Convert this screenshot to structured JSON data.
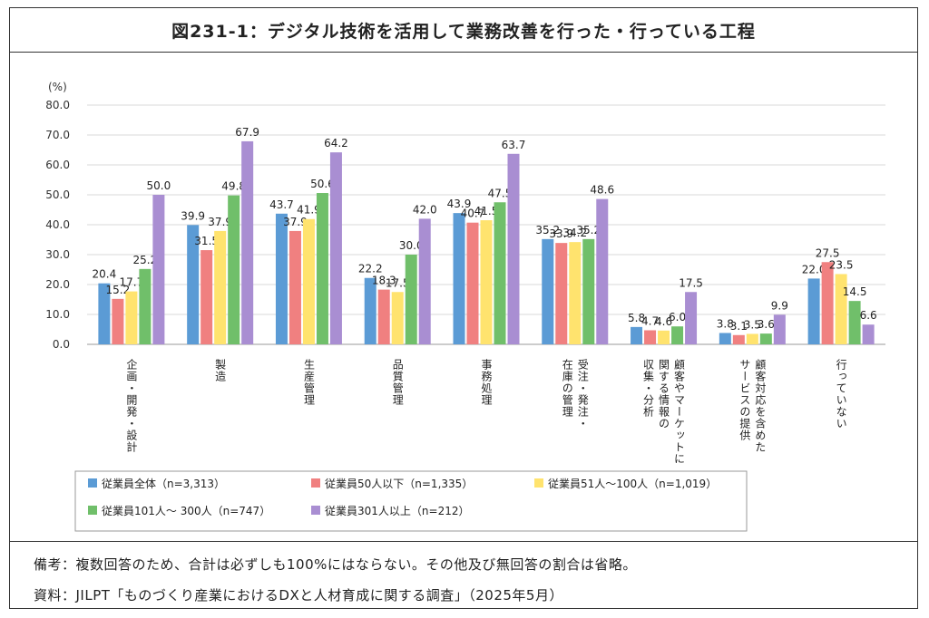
{
  "title": "図231-1：デジタル技術を活用して業務改善を行った・行っている工程",
  "notes": {
    "remarks": "備考：複数回答のため、合計は必ずしも100%にはならない。その他及び無回答の割合は省略。",
    "source": "資料：JILPT「ものづくり産業におけるDXと人材育成に関する調査」（2025年5月）"
  },
  "chart_data": {
    "type": "bar",
    "y_unit_label": "(%)",
    "ylim": [
      0,
      80
    ],
    "y_ticks": [
      "0.0",
      "10.0",
      "20.0",
      "30.0",
      "40.0",
      "50.0",
      "60.0",
      "70.0",
      "80.0"
    ],
    "grid": true,
    "legend_position": "bottom",
    "categories": [
      [
        "企画・開発・設計"
      ],
      [
        "製造"
      ],
      [
        "生産管理"
      ],
      [
        "品質管理"
      ],
      [
        "事務処理"
      ],
      [
        "受注・発注・",
        "在庫の管理"
      ],
      [
        "顧客やマーケットに",
        "関する情報の",
        "収集・分析"
      ],
      [
        "顧客対応を含めた",
        "サービスの提供"
      ],
      [
        "行っていない"
      ]
    ],
    "series": [
      {
        "name": "従業員全体（n=3,313）",
        "color": "#5b9bd5",
        "values": [
          20.4,
          39.9,
          43.7,
          22.2,
          43.9,
          35.2,
          5.8,
          3.8,
          22.0
        ]
      },
      {
        "name": "従業員50人以下（n=1,335）",
        "color": "#f08080",
        "values": [
          15.2,
          31.5,
          37.9,
          18.3,
          40.7,
          33.9,
          4.7,
          3.1,
          27.5
        ]
      },
      {
        "name": "従業員51人～100人（n=1,019）",
        "color": "#ffe36e",
        "values": [
          17.7,
          37.9,
          41.9,
          17.5,
          41.5,
          34.2,
          4.6,
          3.5,
          23.5
        ]
      },
      {
        "name": "従業員101人～ 300人（n=747）",
        "color": "#70bf6a",
        "values": [
          25.2,
          49.8,
          50.6,
          30.0,
          47.5,
          35.2,
          6.0,
          3.6,
          14.5
        ]
      },
      {
        "name": "従業員301人以上（n=212）",
        "color": "#a98ed2",
        "values": [
          50.0,
          67.9,
          64.2,
          42.0,
          63.7,
          48.6,
          17.5,
          9.9,
          6.6
        ]
      }
    ],
    "value_labels": [
      [
        "20.4",
        "15.2",
        "17.7",
        "25.2",
        "50.0"
      ],
      [
        "39.9",
        "31.5",
        "37.9",
        "49.8",
        "67.9"
      ],
      [
        "43.7",
        "37.9",
        "41.9",
        "50.6",
        "64.2"
      ],
      [
        "22.2",
        "18.3",
        "17.5",
        "30.0",
        "42.0"
      ],
      [
        "43.9",
        "40.7",
        "41.5",
        "47.5",
        "63.7"
      ],
      [
        "35.2",
        "33.9",
        "34.2",
        "35.2",
        "48.6"
      ],
      [
        "5.8",
        "4.7",
        "4.6",
        "6.0",
        "17.5"
      ],
      [
        "3.8",
        "3.1",
        "3.5",
        "3.6",
        "9.9"
      ],
      [
        "22.0",
        "27.5",
        "23.5",
        "14.5",
        "6.6"
      ]
    ]
  }
}
